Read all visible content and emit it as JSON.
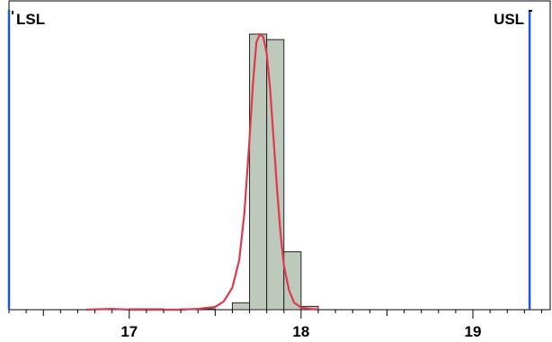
{
  "chart_data": {
    "type": "histogram",
    "title": "",
    "xlabel": "",
    "ylabel": "",
    "xlim": [
      16.3,
      19.45
    ],
    "ylim": [
      0,
      1.0
    ],
    "x_ticks": [
      17,
      18,
      19
    ],
    "x_tick_labels": [
      "17",
      "18",
      "19"
    ],
    "grid": false,
    "bins": [
      {
        "x0": 16.7,
        "x1": 16.8,
        "value": 0
      },
      {
        "x0": 16.8,
        "x1": 16.9,
        "value": 0.003
      },
      {
        "x0": 16.9,
        "x1": 17.0,
        "value": 0
      },
      {
        "x0": 17.0,
        "x1": 17.1,
        "value": 0.003
      },
      {
        "x0": 17.1,
        "x1": 17.2,
        "value": 0.003
      },
      {
        "x0": 17.2,
        "x1": 17.3,
        "value": 0
      },
      {
        "x0": 17.3,
        "x1": 17.4,
        "value": 0.003
      },
      {
        "x0": 17.4,
        "x1": 17.5,
        "value": 0.003
      },
      {
        "x0": 17.5,
        "x1": 17.6,
        "value": 0
      },
      {
        "x0": 17.6,
        "x1": 17.7,
        "value": 0.025
      },
      {
        "x0": 17.7,
        "x1": 17.8,
        "value": 1.0
      },
      {
        "x0": 17.8,
        "x1": 17.9,
        "value": 0.98
      },
      {
        "x0": 17.9,
        "x1": 18.0,
        "value": 0.21
      },
      {
        "x0": 18.0,
        "x1": 18.1,
        "value": 0.012
      }
    ],
    "density_curve": {
      "color": "#e0394b",
      "x": [
        16.75,
        16.9,
        17.0,
        17.1,
        17.2,
        17.3,
        17.4,
        17.5,
        17.55,
        17.6,
        17.64,
        17.67,
        17.7,
        17.72,
        17.74,
        17.76,
        17.78,
        17.8,
        17.82,
        17.84,
        17.86,
        17.88,
        17.9,
        17.93,
        17.96,
        18.0,
        18.05,
        18.1
      ],
      "y": [
        0.0,
        0.003,
        0.0,
        0.0,
        0.0,
        0.0,
        0.003,
        0.01,
        0.03,
        0.08,
        0.18,
        0.35,
        0.62,
        0.82,
        0.97,
        1.0,
        0.99,
        0.93,
        0.8,
        0.62,
        0.44,
        0.28,
        0.16,
        0.07,
        0.025,
        0.008,
        0.003,
        0.0
      ]
    },
    "spec_limits": [
      {
        "label": "LSL",
        "value": 16.3,
        "color": "#1a55e0"
      },
      {
        "label": "USL",
        "value": 19.33,
        "color": "#1a55e0"
      }
    ],
    "bar_fill": "#bdcabb",
    "bar_stroke": "#222222"
  }
}
